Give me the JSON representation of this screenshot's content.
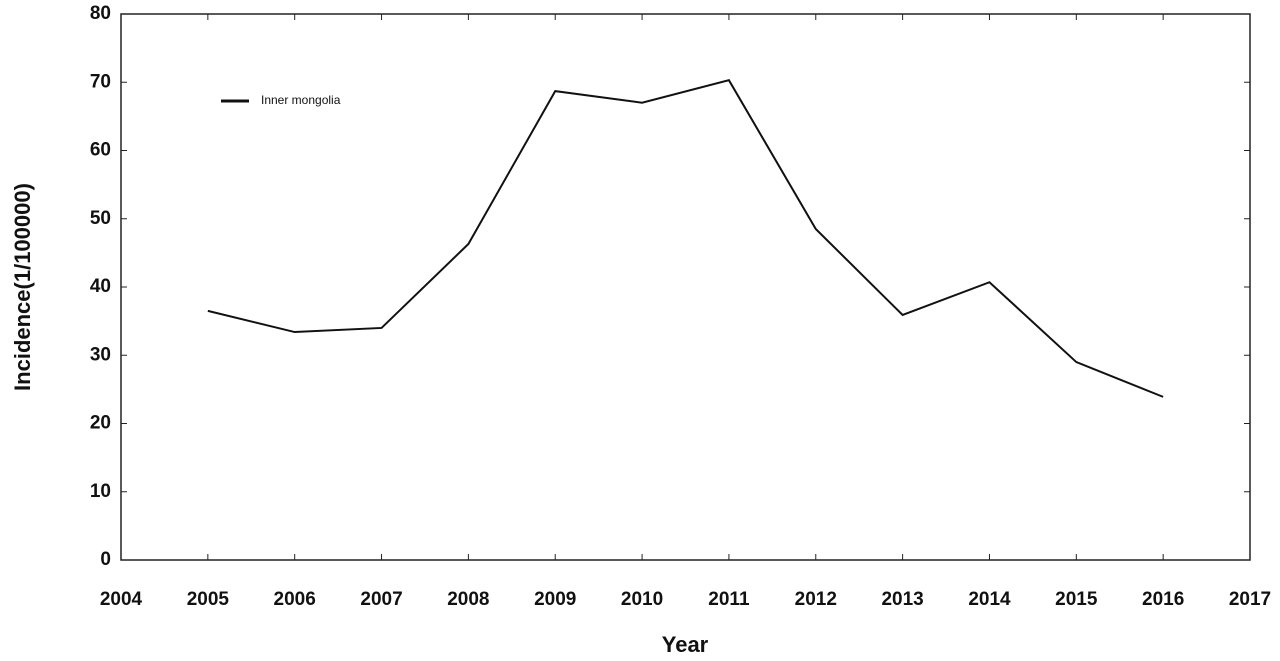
{
  "chart_data": {
    "type": "line",
    "x_label": "Year",
    "y_label": "Incidence(1/100000)",
    "x": [
      2005,
      2006,
      2007,
      2008,
      2009,
      2010,
      2011,
      2012,
      2013,
      2014,
      2015,
      2016
    ],
    "series": [
      {
        "name": "Inner mongolia",
        "color": "#111111",
        "values": [
          36.5,
          33.4,
          34.0,
          46.3,
          68.7,
          67.0,
          70.3,
          48.5,
          35.9,
          40.7,
          29.0,
          23.9
        ]
      }
    ],
    "xlim": [
      2004,
      2017
    ],
    "xticks": [
      2004,
      2005,
      2006,
      2007,
      2008,
      2009,
      2010,
      2011,
      2012,
      2013,
      2014,
      2015,
      2016,
      2017
    ],
    "ylim": [
      0,
      80
    ],
    "yticks": [
      0,
      10,
      20,
      30,
      40,
      50,
      60,
      70,
      80
    ],
    "legend": "upper left",
    "grid": false
  }
}
